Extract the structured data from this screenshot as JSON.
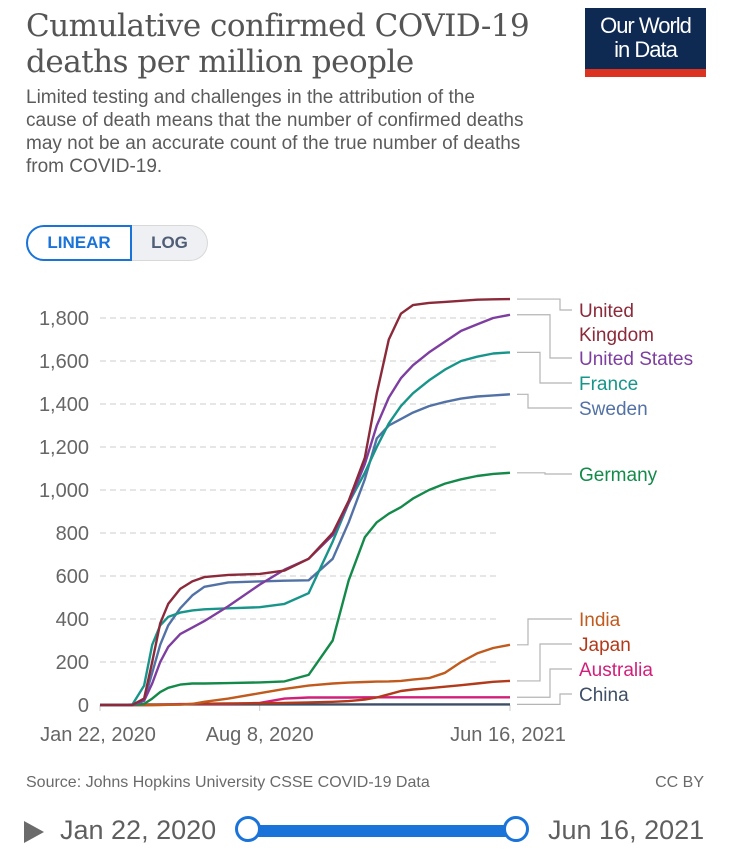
{
  "header": {
    "title_line1": "Cumulative confirmed COVID-19",
    "title_line2": "deaths per million people",
    "subtitle": "Limited testing and challenges in the attribution of the cause of death means that the number of confirmed deaths may not be an accurate count of the true number of deaths from COVID-19.",
    "logo_line1": "Our World",
    "logo_line2": "in Data",
    "logo_bg": "#0f2a52",
    "logo_accent": "#dc3222"
  },
  "scale_toggle": {
    "options": [
      "LINEAR",
      "LOG"
    ],
    "selected": "LINEAR"
  },
  "footer": {
    "source": "Source: Johns Hopkins University CSSE COVID-19 Data",
    "license": "CC BY"
  },
  "timeline": {
    "start_label": "Jan 22, 2020",
    "end_label": "Jun 16, 2021",
    "play_icon": "play-icon",
    "accent": "#1a73d9"
  },
  "chart_data": {
    "type": "line",
    "title": "Cumulative confirmed COVID-19 deaths per million people",
    "xlabel": "",
    "ylabel": "",
    "x_unit": "days since Jan 22, 2020",
    "xlim": [
      0,
      511
    ],
    "ylim": [
      0,
      1900
    ],
    "y_ticks": [
      0,
      200,
      400,
      600,
      800,
      1000,
      1200,
      1400,
      1600,
      1800
    ],
    "y_tick_labels": [
      "0",
      "200",
      "400",
      "600",
      "800",
      "1,000",
      "1,200",
      "1,400",
      "1,600",
      "1,800"
    ],
    "x_ticks": [
      0,
      199,
      511
    ],
    "x_tick_labels": [
      "Jan 22, 2020",
      "Aug 8, 2020",
      "Jun 16, 2021"
    ],
    "grid": "horizontal-dashed",
    "legend": "right",
    "x": [
      0,
      40,
      55,
      65,
      75,
      85,
      100,
      115,
      130,
      160,
      199,
      230,
      260,
      290,
      310,
      330,
      345,
      360,
      375,
      390,
      410,
      430,
      450,
      470,
      490,
      511
    ],
    "series": [
      {
        "name": "United Kingdom",
        "color": "#8a2a3a",
        "values": [
          0,
          0,
          30,
          200,
          380,
          470,
          540,
          575,
          595,
          605,
          610,
          625,
          680,
          800,
          950,
          1150,
          1450,
          1700,
          1820,
          1860,
          1870,
          1875,
          1880,
          1885,
          1887,
          1888
        ]
      },
      {
        "name": "United States",
        "color": "#7e3ea0",
        "values": [
          0,
          0,
          20,
          100,
          200,
          270,
          330,
          360,
          390,
          460,
          560,
          630,
          680,
          790,
          940,
          1120,
          1300,
          1430,
          1520,
          1580,
          1640,
          1690,
          1740,
          1770,
          1800,
          1815
        ]
      },
      {
        "name": "France",
        "color": "#18958a",
        "values": [
          0,
          0,
          90,
          280,
          370,
          410,
          430,
          440,
          445,
          450,
          455,
          470,
          520,
          760,
          940,
          1080,
          1200,
          1310,
          1390,
          1450,
          1510,
          1560,
          1600,
          1620,
          1635,
          1640
        ]
      },
      {
        "name": "Sweden",
        "color": "#5272a5",
        "values": [
          0,
          0,
          20,
          150,
          280,
          370,
          450,
          510,
          550,
          570,
          575,
          578,
          580,
          680,
          850,
          1050,
          1240,
          1300,
          1330,
          1360,
          1390,
          1410,
          1425,
          1435,
          1440,
          1445
        ]
      },
      {
        "name": "Germany",
        "color": "#148a4a",
        "values": [
          0,
          0,
          5,
          30,
          60,
          80,
          95,
          100,
          100,
          102,
          105,
          110,
          140,
          300,
          580,
          780,
          850,
          890,
          920,
          960,
          1000,
          1030,
          1050,
          1065,
          1075,
          1080
        ]
      },
      {
        "name": "India",
        "color": "#c05a1d",
        "values": [
          0,
          0,
          0,
          0,
          0,
          1,
          2,
          5,
          15,
          30,
          55,
          75,
          90,
          100,
          104,
          107,
          109,
          110,
          112,
          118,
          125,
          150,
          200,
          240,
          265,
          280
        ]
      },
      {
        "name": "Japan",
        "color": "#b23a1a",
        "values": [
          0,
          0,
          0,
          0,
          1,
          2,
          3,
          5,
          6,
          7,
          8,
          10,
          12,
          15,
          18,
          25,
          35,
          50,
          65,
          72,
          78,
          85,
          92,
          100,
          108,
          112
        ]
      },
      {
        "name": "Australia",
        "color": "#d11f7a",
        "values": [
          0,
          0,
          0,
          1,
          2,
          3,
          4,
          4,
          4,
          5,
          10,
          30,
          35,
          35,
          35,
          36,
          36,
          36,
          36,
          36,
          36,
          36,
          36,
          36,
          36,
          36
        ]
      },
      {
        "name": "China",
        "color": "#3d4e66",
        "values": [
          0,
          2,
          3,
          3,
          3,
          3,
          3,
          3,
          3,
          3,
          3,
          3,
          3,
          3,
          3,
          3,
          3,
          3,
          3,
          3,
          3,
          3,
          3,
          3,
          3,
          3
        ]
      }
    ],
    "legend_labels": [
      {
        "series": "United Kingdom",
        "lines": [
          "United",
          "Kingdom"
        ]
      },
      {
        "series": "United States",
        "lines": [
          "United States"
        ]
      },
      {
        "series": "France",
        "lines": [
          "France"
        ]
      },
      {
        "series": "Sweden",
        "lines": [
          "Sweden"
        ]
      },
      {
        "series": "Germany",
        "lines": [
          "Germany"
        ]
      },
      {
        "series": "India",
        "lines": [
          "India"
        ]
      },
      {
        "series": "Japan",
        "lines": [
          "Japan"
        ]
      },
      {
        "series": "Australia",
        "lines": [
          "Australia"
        ]
      },
      {
        "series": "China",
        "lines": [
          "China"
        ]
      }
    ]
  }
}
